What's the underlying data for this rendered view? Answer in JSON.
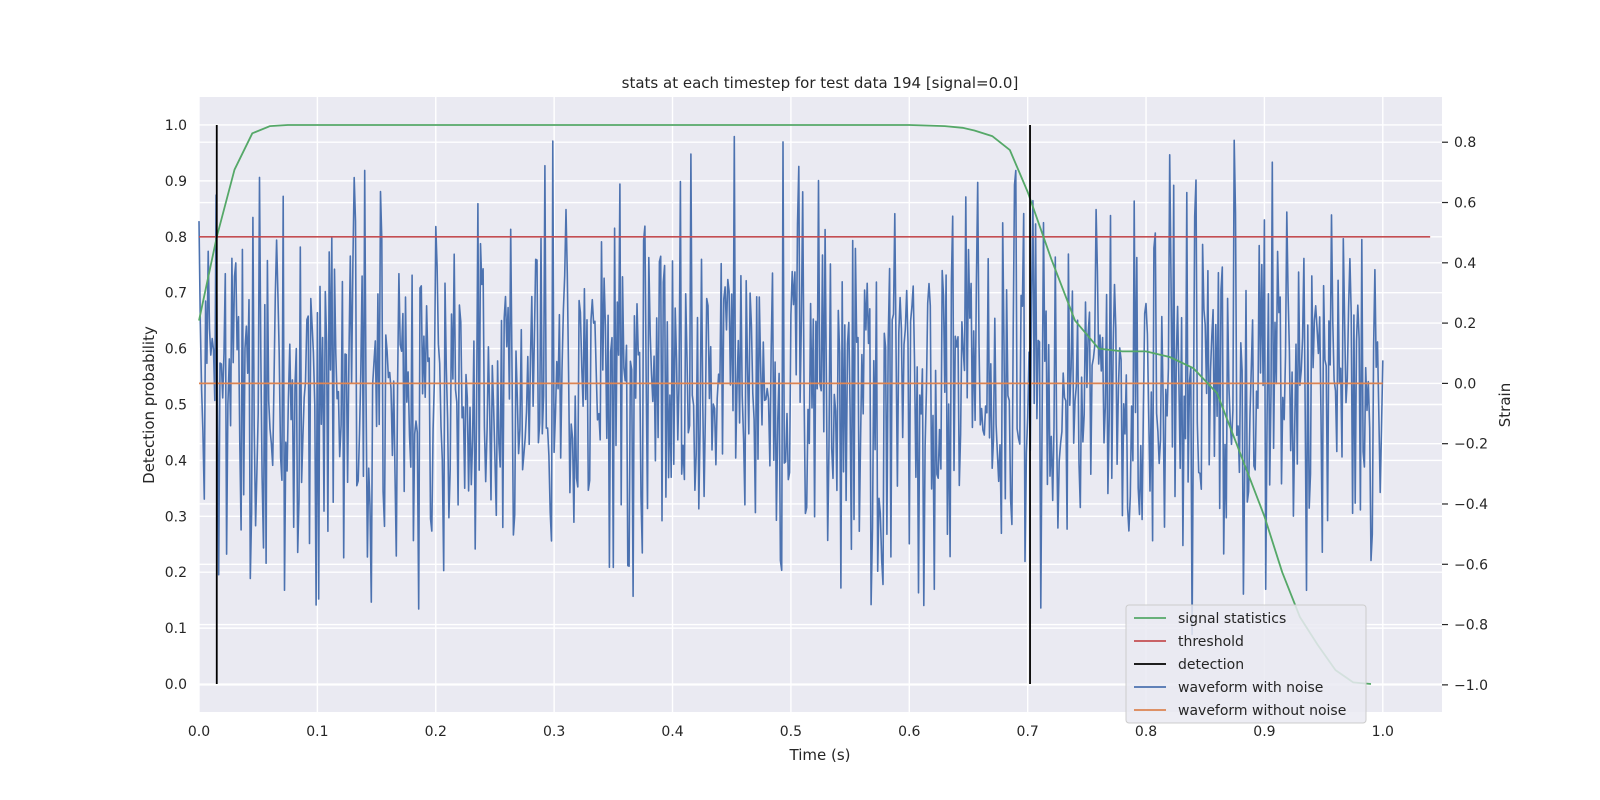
{
  "chart_data": {
    "type": "line",
    "title": "stats at each timestep for test data 194 [signal=0.0]",
    "xlabel": "Time (s)",
    "ylabel": "Detection probability",
    "y2label": "Strain",
    "xlim": [
      0.0,
      1.05
    ],
    "ylim": [
      -0.05,
      1.05
    ],
    "y2lim": [
      -1.09,
      0.95
    ],
    "xticks": [
      "0.0",
      "0.1",
      "0.2",
      "0.3",
      "0.4",
      "0.5",
      "0.6",
      "0.7",
      "0.8",
      "0.9",
      "1.0"
    ],
    "yticks": [
      "0.0",
      "0.1",
      "0.2",
      "0.3",
      "0.4",
      "0.5",
      "0.6",
      "0.7",
      "0.8",
      "0.9",
      "1.0"
    ],
    "y2ticks": [
      "−1.0",
      "−0.8",
      "−0.6",
      "−0.4",
      "−0.2",
      "0.0",
      "0.2",
      "0.4",
      "0.6",
      "0.8"
    ],
    "grid": true,
    "background": "#eaeaf2",
    "legend_position": "lower-right",
    "legend": [
      "signal statistics",
      "threshold",
      "detection",
      "waveform with noise",
      "waveform without noise"
    ],
    "series": [
      {
        "name": "signal statistics",
        "axis": "left",
        "color": "#55a868",
        "x": [
          0.0,
          0.015,
          0.03,
          0.045,
          0.06,
          0.075,
          0.09,
          0.2,
          0.4,
          0.6,
          0.63,
          0.645,
          0.655,
          0.67,
          0.685,
          0.7,
          0.72,
          0.74,
          0.76,
          0.78,
          0.8,
          0.82,
          0.84,
          0.86,
          0.88,
          0.9,
          0.915,
          0.93,
          0.945,
          0.96,
          0.975,
          0.99
        ],
        "y": [
          0.65,
          0.8,
          0.92,
          0.985,
          0.998,
          1.0,
          1.0,
          1.0,
          1.0,
          1.0,
          0.998,
          0.995,
          0.99,
          0.98,
          0.955,
          0.88,
          0.76,
          0.65,
          0.6,
          0.595,
          0.595,
          0.585,
          0.565,
          0.52,
          0.41,
          0.3,
          0.2,
          0.12,
          0.07,
          0.025,
          0.003,
          0.0
        ]
      },
      {
        "name": "threshold",
        "axis": "left",
        "color": "#c44e52",
        "x": [
          0.0,
          1.04
        ],
        "y": [
          0.8,
          0.8
        ]
      },
      {
        "name": "detection",
        "axis": "left",
        "color": "#000000",
        "vlines": [
          0.015,
          0.702
        ],
        "ymin": 0.0,
        "ymax": 1.0
      },
      {
        "name": "waveform with noise",
        "axis": "right",
        "color": "#4c72b0",
        "x_range": [
          0.0,
          1.0
        ],
        "n_points": 900,
        "y_range": [
          -1.0,
          0.95
        ]
      },
      {
        "name": "waveform without noise",
        "axis": "right",
        "color": "#dd8452",
        "x": [
          0.0,
          1.0
        ],
        "y": [
          0.0,
          0.0
        ]
      }
    ]
  }
}
